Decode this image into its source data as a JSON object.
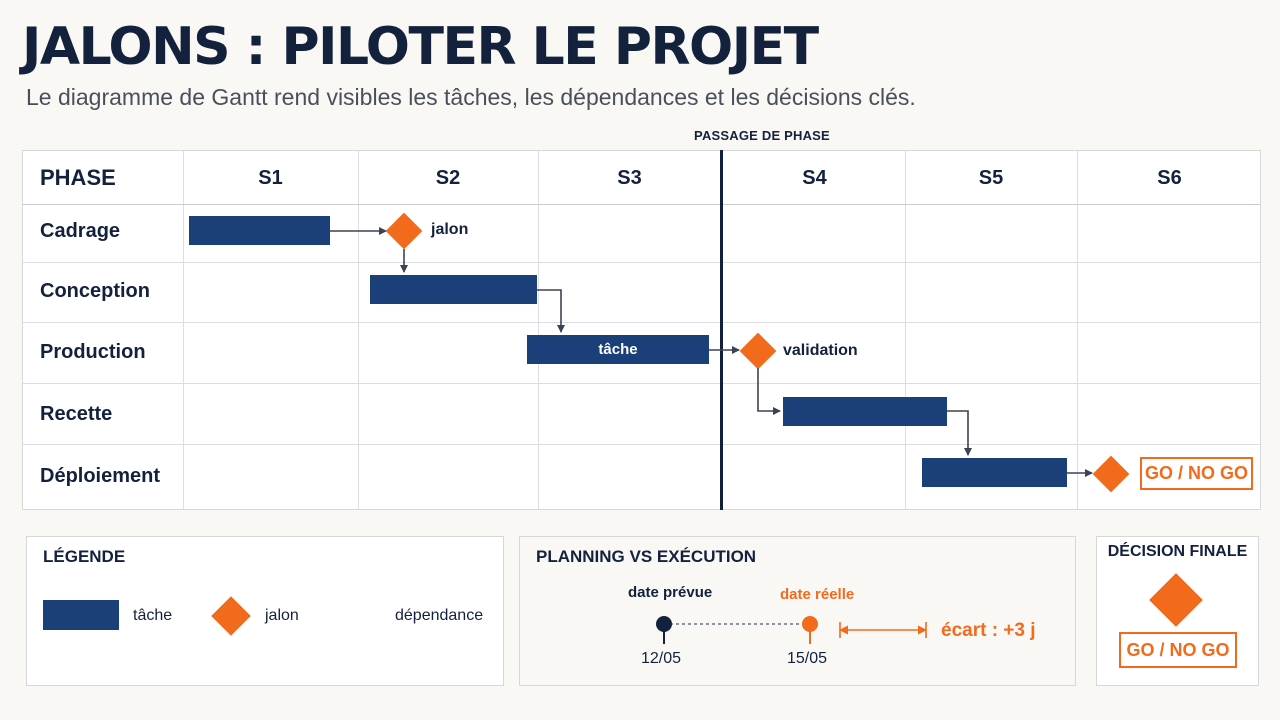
{
  "title": "JALONS : PILOTER LE PROJET",
  "subtitle": "Le diagramme de Gantt rend visibles les tâches, les dépendances et les décisions clés.",
  "phase_pass_label": "PASSAGE DE PHASE",
  "colors": {
    "task": "#1b4079",
    "milestone": "#f26b1d",
    "text": "#14213d"
  },
  "gantt": {
    "phase_header": "PHASE",
    "weeks": [
      "S1",
      "S2",
      "S3",
      "S4",
      "S5",
      "S6"
    ],
    "rows": [
      "Cadrage",
      "Conception",
      "Production",
      "Recette",
      "Déploiement"
    ],
    "task_label": "tâche",
    "milestones": {
      "first": "jalon",
      "second": "validation",
      "final": "GO / NO GO"
    }
  },
  "legend": {
    "title": "LÉGENDE",
    "task": "tâche",
    "milestone": "jalon",
    "dependency": "dépendance"
  },
  "planning": {
    "title": "PLANNING VS EXÉCUTION",
    "planned_label": "date prévue",
    "actual_label": "date réelle",
    "planned_date": "12/05",
    "actual_date": "15/05",
    "gap": "écart : +3 j"
  },
  "decision": {
    "title": "DÉCISION FINALE",
    "button": "GO / NO GO"
  }
}
